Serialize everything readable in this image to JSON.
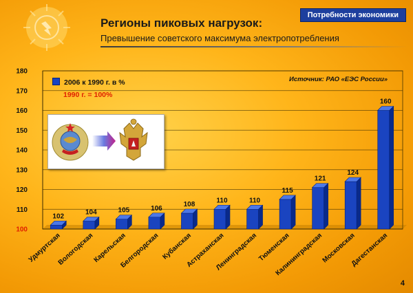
{
  "header": {
    "badge": "Потребности экономики",
    "title": "Регионы пиковых нагрузок:",
    "subtitle": "Превышение советского максимума электропотребления"
  },
  "legend": {
    "series_label": "2006 к 1990 г. в %",
    "baseline_note": "1990 г. = 100%"
  },
  "source": "Источник: РАО «ЕЭС России»",
  "page_number": "4",
  "colors": {
    "bar": "#1a44c0",
    "bar_dark": "#0a2a8a",
    "bar_top": "#4c78e8",
    "baseline_tick": "#e02000"
  },
  "chart_data": {
    "type": "bar",
    "categories": [
      "Удмуртская",
      "Вологодская",
      "Карельская",
      "Белгородская",
      "Кубанская",
      "Астраханская",
      "Ленинградская",
      "Тюменская",
      "Калининградская",
      "Московская",
      "Дагестанская"
    ],
    "series": [
      {
        "name": "2006 к 1990 г. в %",
        "values": [
          102,
          104,
          105,
          106,
          108,
          110,
          110,
          115,
          121,
          124,
          160
        ]
      }
    ],
    "ylim": [
      100,
      180
    ],
    "yticks": [
      100,
      110,
      120,
      130,
      140,
      150,
      160,
      170,
      180
    ],
    "grid": true,
    "legend_position": "top-left"
  }
}
